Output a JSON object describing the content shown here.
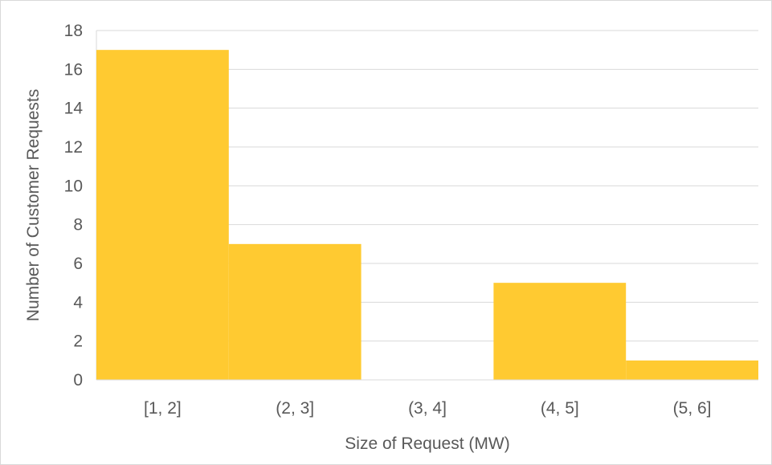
{
  "chart_data": {
    "type": "bar",
    "title": "",
    "xlabel": "Size of Request (MW)",
    "ylabel": "Number of Customer Requests",
    "categories": [
      "[1, 2]",
      "(2, 3]",
      "(3, 4]",
      "(4, 5]",
      "(5, 6]"
    ],
    "values": [
      17,
      7,
      0,
      5,
      1
    ],
    "ylim": [
      0,
      18
    ],
    "yticks": [
      0,
      2,
      4,
      6,
      8,
      10,
      12,
      14,
      16,
      18
    ],
    "grid": true,
    "legend": "none",
    "colors": {
      "bar": "#FFCA31",
      "grid": "#d9d9d9",
      "text": "#595959"
    }
  }
}
